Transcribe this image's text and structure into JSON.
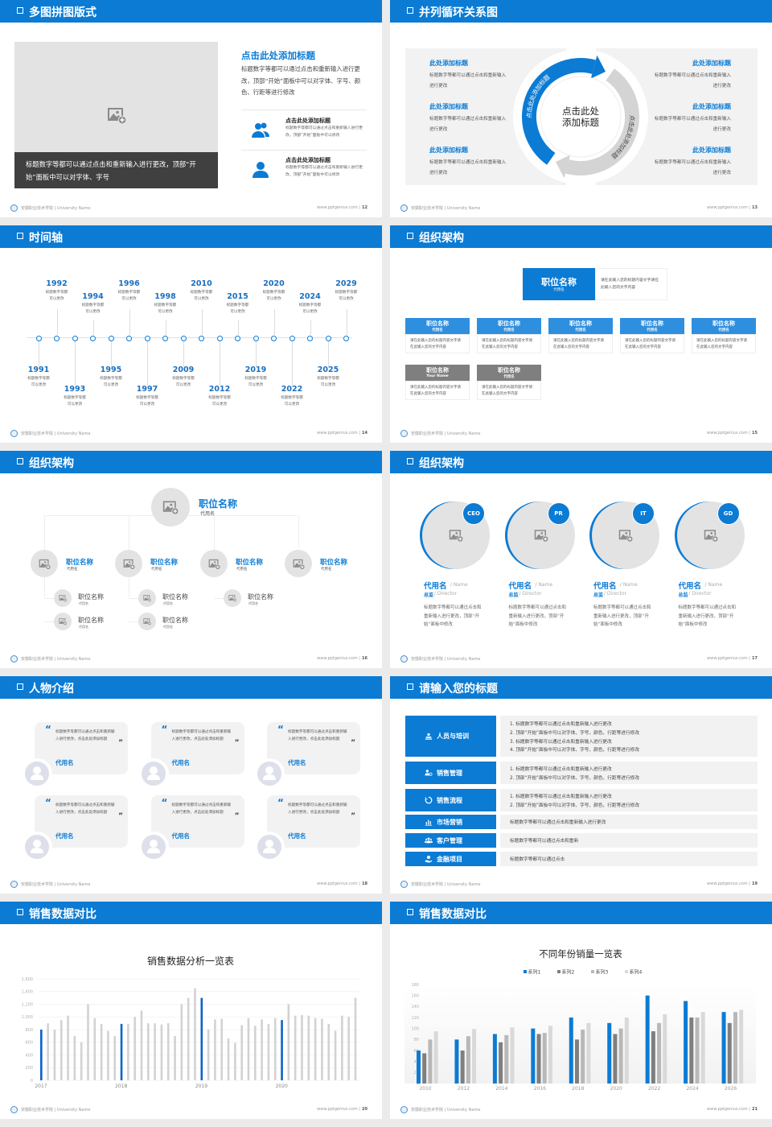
{
  "colors": {
    "brand_blue": "#0b7bd4",
    "dark_caption": "#404040",
    "panel_gray": "#f2f2f2",
    "placeholder": "#e3e3e3",
    "series": [
      "#0b7bd4",
      "#7f7f7f",
      "#b8b8b8",
      "#d9d9d9"
    ]
  },
  "footer": {
    "school": "安徽职业技术学院 | University Name",
    "site": "www.pptgenius.com |"
  },
  "slides": [
    {
      "title": "多图拼图版式",
      "page": "12",
      "caption": "标题数字等都可以通过点击和重新输入进行更改，顶部“开始”面板中可以对字体、字号",
      "heading": "点击此处添加标题",
      "desc": "标题数字等都可以通过点击和重新输入进行更改，顶部“开始”面板中可以对字体、字号、颜色、行距等进行修改",
      "items": [
        {
          "icon": "users-icon",
          "title": "点击此处添加标题",
          "desc": "标题数字等都可以通过点击和重新输入进行更改，顶部“开始”面板中可以修改"
        },
        {
          "icon": "user-icon",
          "title": "点击此处添加标题",
          "desc": "标题数字等都可以通过点击和重新输入进行更改，顶部“开始”面板中可以修改"
        }
      ]
    },
    {
      "title": "并列循环关系图",
      "page": "13",
      "center": [
        "点击此处",
        "添加标题"
      ],
      "arc_left": "点击此处添加标题",
      "arc_right": "点击此处添加标题",
      "left_items": [
        {
          "title": "此处添加标题",
          "desc": "标题数字等都可以通过点击和重新输入进行更改"
        },
        {
          "title": "此处添加标题",
          "desc": "标题数字等都可以通过点击和重新输入进行更改"
        },
        {
          "title": "此处添加标题",
          "desc": "标题数字等都可以通过点击和重新输入进行更改"
        }
      ],
      "right_items": [
        {
          "title": "此处添加标题",
          "desc": "标题数字等都可以通过点击和重新输入进行更改"
        },
        {
          "title": "此处添加标题",
          "desc": "标题数字等都可以通过点击和重新输入进行更改"
        },
        {
          "title": "此处添加标题",
          "desc": "标题数字等都可以通过点击和重新输入进行更改"
        }
      ]
    },
    {
      "title": "时间轴",
      "page": "14",
      "events": [
        {
          "year": "1991",
          "desc": "标题数字等都可以更改"
        },
        {
          "year": "1992",
          "desc": "标题数字等都可以更改"
        },
        {
          "year": "1993",
          "desc": "标题数字等都可以更改"
        },
        {
          "year": "1994",
          "desc": "标题数字等都可以更改"
        },
        {
          "year": "1995",
          "desc": "标题数字等都可以更改"
        },
        {
          "year": "1996",
          "desc": "标题数字等都可以更改"
        },
        {
          "year": "1997",
          "desc": "标题数字等都可以更改"
        },
        {
          "year": "1998",
          "desc": "标题数字等都可以更改"
        },
        {
          "year": "2009",
          "desc": "标题数字等都可以更改"
        },
        {
          "year": "2010",
          "desc": "标题数字等都可以更改"
        },
        {
          "year": "2012",
          "desc": "标题数字等都可以更改"
        },
        {
          "year": "2015",
          "desc": "标题数字等都可以更改"
        },
        {
          "year": "2019",
          "desc": "标题数字等都可以更改"
        },
        {
          "year": "2020",
          "desc": "标题数字等都可以更改"
        },
        {
          "year": "2022",
          "desc": "标题数字等都可以更改"
        },
        {
          "year": "2024",
          "desc": "标题数字等都可以更改"
        },
        {
          "year": "2025",
          "desc": "标题数字等都可以更改"
        },
        {
          "year": "2029",
          "desc": "标题数字等都可以更改"
        }
      ]
    },
    {
      "title": "组织架构",
      "page": "15",
      "top": {
        "title": "职位名称",
        "sub": "代用名",
        "desc": "请在此输入您的标题内容文字请在此输入您的文字内容"
      },
      "row": [
        {
          "title": "职位名称",
          "sub": "代用名",
          "desc": "请在此输入您的标题内容文字请在此输入您的文字内容"
        },
        {
          "title": "职位名称",
          "sub": "代用名",
          "desc": "请在此输入您的标题内容文字请在此输入您的文字内容"
        },
        {
          "title": "职位名称",
          "sub": "代用名",
          "desc": "请在此输入您的标题内容文字请在此输入您的文字内容"
        },
        {
          "title": "职位名称",
          "sub": "代用名",
          "desc": "请在此输入您的标题内容文字请在此输入您的文字内容"
        },
        {
          "title": "职位名称",
          "sub": "代用名",
          "desc": "请在此输入您的标题内容文字请在此输入您的文字内容"
        }
      ],
      "row2": [
        {
          "title": "职位名称",
          "sub": "Your Name",
          "desc": "请在此输入您的标题内容文字请在此输入您的文字内容"
        },
        {
          "title": "职位名称",
          "sub": "代用名",
          "desc": "请在此输入您的标题内容文字请在此输入您的文字内容"
        }
      ]
    },
    {
      "title": "组织架构",
      "page": "16",
      "top": {
        "title": "职位名称",
        "sub": "代用名"
      },
      "branches": [
        {
          "title": "职位名称",
          "sub": "代用名",
          "children": [
            {
              "title": "职位名称",
              "sub": "代用名"
            },
            {
              "title": "职位名称",
              "sub": "代用名"
            }
          ]
        },
        {
          "title": "职位名称",
          "sub": "代用名",
          "children": [
            {
              "title": "职位名称",
              "sub": "代用名"
            },
            {
              "title": "职位名称",
              "sub": "代用名"
            }
          ]
        },
        {
          "title": "职位名称",
          "sub": "代用名",
          "children": [
            {
              "title": "职位名称",
              "sub": "代用名"
            }
          ]
        },
        {
          "title": "职位名称",
          "sub": "代用名",
          "children": []
        }
      ]
    },
    {
      "title": "组织架构",
      "page": "17",
      "people": [
        {
          "badge": "CEO",
          "name": "代用名",
          "name_en": "/ Name",
          "role": "总监",
          "role_en": "/  Director",
          "desc": "标题数字等都可以通过点击和重新输入进行更改，顶部“开始”面板中修改"
        },
        {
          "badge": "PR",
          "name": "代用名",
          "name_en": "/ Name",
          "role": "总监",
          "role_en": "/  Director",
          "desc": "标题数字等都可以通过点击和重新输入进行更改，顶部“开始”面板中修改"
        },
        {
          "badge": "IT",
          "name": "代用名",
          "name_en": "/ Name",
          "role": "总监",
          "role_en": "/  Director",
          "desc": "标题数字等都可以通过点击和重新输入进行更改，顶部“开始”面板中修改"
        },
        {
          "badge": "GD",
          "name": "代用名",
          "name_en": "/ Name",
          "role": "总监",
          "role_en": "/  Director",
          "desc": "标题数字等都可以通过点击和重新输入进行更改，顶部“开始”面板中修改"
        }
      ]
    },
    {
      "title": "人物介绍",
      "page": "18",
      "cards": [
        {
          "quote": "标题数字等都可以通过点击和重新输入进行更改，点击此处添加标题",
          "name": "代用名"
        },
        {
          "quote": "标题数字等都可以通过点击和重新输入进行更改，点击此处添加标题",
          "name": "代用名"
        },
        {
          "quote": "标题数字等都可以通过点击和重新输入进行更改，点击此处添加标题",
          "name": "代用名"
        },
        {
          "quote": "标题数字等都可以通过点击和重新输入进行更改，点击此处添加标题",
          "name": "代用名"
        },
        {
          "quote": "标题数字等都可以通过点击和重新输入进行更改，点击此处添加标题",
          "name": "代用名"
        },
        {
          "quote": "标题数字等都可以通过点击和重新输入进行更改，点击此处添加标题",
          "name": "代用名"
        }
      ]
    },
    {
      "title": "请输入您的标题",
      "page": "19",
      "rows": [
        {
          "icon": "training-icon",
          "label": "人员与培训",
          "lines": [
            "1.   标题数字等都可以通过点击和重新输入进行更改",
            "2.   顶部“开始”面板中可以对字体、字号、颜色、行距等进行修改",
            "3.   标题数字等都可以通过点击和重新输入进行更改",
            "4.   顶部“开始”面板中可以对字体、字号、颜色、行距等进行修改"
          ]
        },
        {
          "icon": "sales-management-icon",
          "label": "销售管理",
          "lines": [
            "1.   标题数字等都可以通过点击和重新输入进行更改",
            "2.   顶部“开始”面板中可以对字体、字号、颜色、行距等进行修改"
          ]
        },
        {
          "icon": "sales-process-icon",
          "label": "销售流程",
          "lines": [
            "1.   标题数字等都可以通过点击和重新输入进行更改",
            "2.   顶部“开始”面板中可以对字体、字号、颜色、行距等进行修改"
          ]
        },
        {
          "icon": "bar-chart-icon",
          "label": "市场营销",
          "lines": [
            "标题数字等都可以通过点击和重新输入进行更改"
          ]
        },
        {
          "icon": "customers-icon",
          "label": "客户管理",
          "lines": [
            "标题数字等都可以通过点击和重新"
          ]
        },
        {
          "icon": "finance-icon",
          "label": "金融项目",
          "lines": [
            "标题数字等都可以通过点击"
          ]
        }
      ]
    },
    {
      "title": "销售数据对比",
      "page": "20"
    },
    {
      "title": "销售数据对比",
      "page": "21"
    }
  ],
  "chart_data": [
    {
      "type": "bar",
      "title": "销售数据分析一览表",
      "xlabel": "",
      "ylabel": "",
      "ylim": [
        0,
        1600
      ],
      "yticks": [
        "0",
        "200",
        "400",
        "600",
        "800",
        "1,000",
        "1,200",
        "1,400",
        "1,600"
      ],
      "x_tick_labels": [
        "2017",
        "2018",
        "2019",
        "2020"
      ],
      "grid": true,
      "highlight": "first bar of each year",
      "values": [
        800,
        900,
        800,
        950,
        1020,
        700,
        600,
        1200,
        980,
        890,
        780,
        700,
        890,
        890,
        1000,
        1100,
        900,
        900,
        880,
        900,
        700,
        1200,
        1300,
        1450,
        1300,
        800,
        960,
        970,
        660,
        590,
        870,
        980,
        860,
        960,
        890,
        980,
        950,
        1200,
        1020,
        1030,
        1020,
        980,
        970,
        890,
        780,
        1020,
        1000,
        1300
      ]
    },
    {
      "type": "bar",
      "title": "不同年份销量一览表",
      "xlabel": "",
      "ylabel": "",
      "ylim": [
        0,
        180
      ],
      "yticks": [
        "0",
        "20",
        "40",
        "60",
        "80",
        "100",
        "120",
        "140",
        "160",
        "180"
      ],
      "legend": "top",
      "categories": [
        "2010",
        "2012",
        "2014",
        "2016",
        "2018",
        "2020",
        "2022",
        "2024",
        "2026"
      ],
      "series": [
        {
          "name": "系列1",
          "values": [
            60,
            80,
            90,
            100,
            120,
            110,
            160,
            150,
            130
          ]
        },
        {
          "name": "系列2",
          "values": [
            55,
            60,
            75,
            90,
            80,
            90,
            95,
            120,
            110
          ]
        },
        {
          "name": "系列3",
          "values": [
            80,
            86,
            88,
            92,
            98,
            100,
            110,
            120,
            130
          ]
        },
        {
          "name": "系列4",
          "values": [
            95,
            99,
            102,
            105,
            110,
            120,
            126,
            130,
            134
          ]
        }
      ]
    }
  ]
}
